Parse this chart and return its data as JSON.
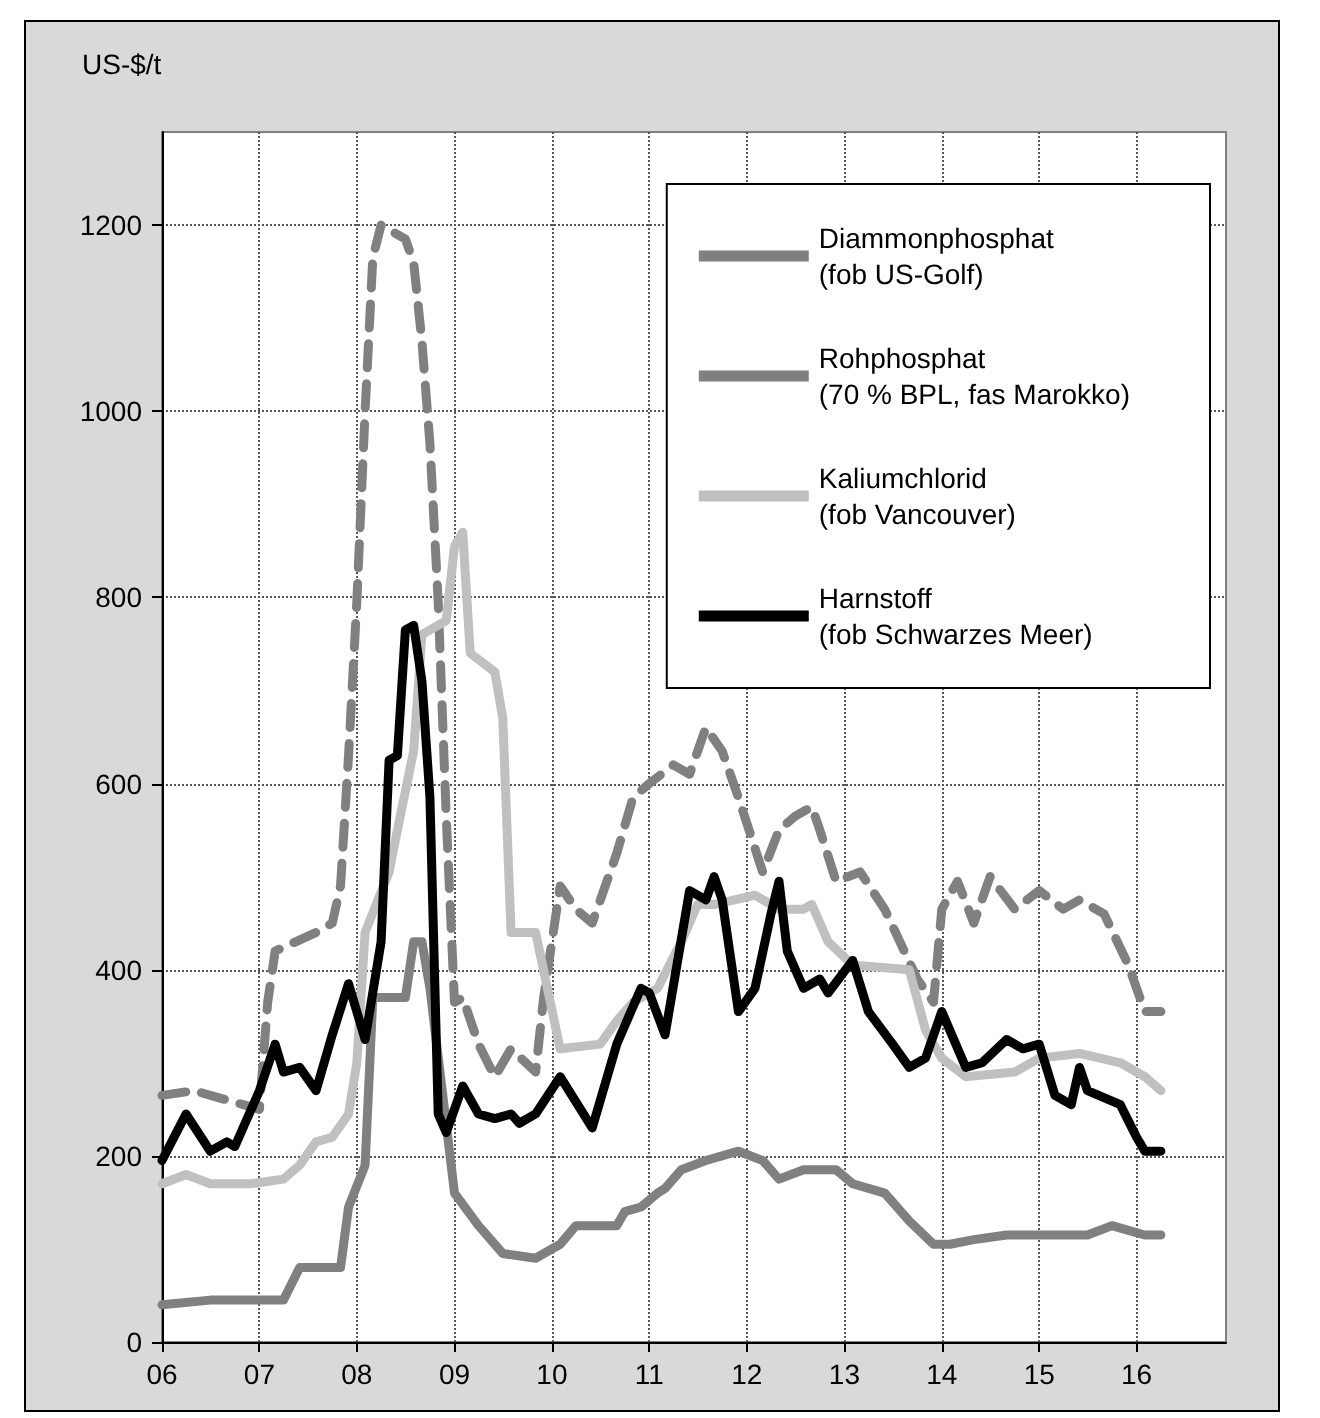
{
  "chart_data": {
    "type": "line",
    "ylabel": "US-$/t",
    "xlim": [
      "2006-01",
      "2016-12"
    ],
    "xticks": [
      {
        "value": "2006",
        "label": "06"
      },
      {
        "value": "2007",
        "label": "07"
      },
      {
        "value": "2008",
        "label": "08"
      },
      {
        "value": "2009",
        "label": "09"
      },
      {
        "value": "2010",
        "label": "10"
      },
      {
        "value": "2011",
        "label": "11"
      },
      {
        "value": "2012",
        "label": "12"
      },
      {
        "value": "2013",
        "label": "13"
      },
      {
        "value": "2014",
        "label": "14"
      },
      {
        "value": "2015",
        "label": "15"
      },
      {
        "value": "2016",
        "label": "16"
      }
    ],
    "ylim": [
      0,
      1300
    ],
    "yticks": [
      0,
      200,
      400,
      600,
      800,
      1000,
      1200
    ],
    "grid": true,
    "legend": "top right",
    "series": [
      {
        "name": "Diammonphosphat\n(fob US-Golf)",
        "color": "#808080",
        "line_style": "dashed",
        "x": [
          "2006-01",
          "2006-05",
          "2006-11",
          "2007-01",
          "2007-02",
          "2007-03",
          "2007-08",
          "2007-10",
          "2007-11",
          "2007-12",
          "2008-01",
          "2008-02",
          "2008-03",
          "2008-04",
          "2008-05",
          "2008-07",
          "2008-08",
          "2008-09",
          "2008-10",
          "2008-11",
          "2008-12",
          "2009-01",
          "2009-02",
          "2009-04",
          "2009-06",
          "2009-08",
          "2009-11",
          "2009-12",
          "2010-02",
          "2010-04",
          "2010-06",
          "2010-09",
          "2010-11",
          "2011-01",
          "2011-04",
          "2011-06",
          "2011-08",
          "2011-10",
          "2011-12",
          "2012-03",
          "2012-05",
          "2012-07",
          "2012-09",
          "2012-10",
          "2012-12",
          "2013-03",
          "2013-06",
          "2013-10",
          "2013-12",
          "2014-01",
          "2014-03",
          "2014-05",
          "2014-07",
          "2014-10",
          "2015-01",
          "2015-04",
          "2015-06",
          "2015-09",
          "2015-12",
          "2016-02",
          "2016-04"
        ],
        "values": [
          265,
          270,
          255,
          250,
          365,
          420,
          440,
          450,
          490,
          630,
          795,
          1000,
          1165,
          1200,
          1195,
          1185,
          1160,
          1075,
          965,
          795,
          565,
          365,
          370,
          320,
          285,
          315,
          290,
          370,
          490,
          465,
          450,
          525,
          585,
          600,
          620,
          610,
          660,
          635,
          585,
          505,
          550,
          565,
          575,
          550,
          495,
          505,
          465,
          390,
          365,
          465,
          495,
          450,
          500,
          465,
          485,
          465,
          475,
          460,
          405,
          355,
          355
        ]
      },
      {
        "name": "Rohphosphat\n(70 % BPL, fas Marokko)",
        "color": "#808080",
        "line_style": "solid",
        "x": [
          "2006-01",
          "2006-07",
          "2007-04",
          "2007-06",
          "2007-11",
          "2007-12",
          "2008-02",
          "2008-03",
          "2008-07",
          "2008-08",
          "2008-09",
          "2008-10",
          "2009-01",
          "2009-04",
          "2009-07",
          "2009-11",
          "2010-02",
          "2010-04",
          "2010-09",
          "2010-10",
          "2010-12",
          "2011-02",
          "2011-03",
          "2011-05",
          "2011-08",
          "2011-12",
          "2012-03",
          "2012-05",
          "2012-08",
          "2012-12",
          "2013-02",
          "2013-06",
          "2013-09",
          "2013-12",
          "2014-02",
          "2014-05",
          "2014-09",
          "2015-07",
          "2015-10",
          "2015-12",
          "2016-02",
          "2016-04"
        ],
        "values": [
          40,
          45,
          45,
          80,
          80,
          145,
          190,
          370,
          370,
          430,
          430,
          380,
          160,
          125,
          95,
          90,
          105,
          125,
          125,
          140,
          145,
          160,
          165,
          185,
          195,
          205,
          195,
          175,
          185,
          185,
          170,
          160,
          130,
          105,
          105,
          110,
          115,
          115,
          125,
          120,
          115,
          115
        ]
      },
      {
        "name": "Kaliumchlorid\n(fob Vancouver)",
        "color": "#c0c0c0",
        "line_style": "solid",
        "x": [
          "2006-01",
          "2006-04",
          "2006-07",
          "2006-12",
          "2007-04",
          "2007-06",
          "2007-08",
          "2007-10",
          "2007-12",
          "2008-01",
          "2008-02",
          "2008-05",
          "2008-06",
          "2008-08",
          "2008-09",
          "2008-12",
          "2009-01",
          "2009-02",
          "2009-03",
          "2009-06",
          "2009-07",
          "2009-08",
          "2009-11",
          "2010-02",
          "2010-07",
          "2010-09",
          "2010-11",
          "2011-02",
          "2011-05",
          "2011-07",
          "2011-09",
          "2012-02",
          "2012-05",
          "2012-08",
          "2012-09",
          "2012-11",
          "2013-02",
          "2013-09",
          "2013-11",
          "2014-01",
          "2014-04",
          "2014-10",
          "2015-01",
          "2015-06",
          "2015-11",
          "2016-02",
          "2016-04"
        ],
        "values": [
          170,
          180,
          170,
          170,
          175,
          190,
          215,
          220,
          245,
          300,
          440,
          505,
          550,
          635,
          760,
          775,
          855,
          870,
          740,
          720,
          670,
          440,
          440,
          315,
          320,
          345,
          365,
          380,
          430,
          470,
          470,
          480,
          465,
          465,
          470,
          430,
          405,
          400,
          335,
          305,
          285,
          290,
          305,
          310,
          300,
          285,
          270
        ]
      },
      {
        "name": "Harnstoff\n(fob Schwarzes Meer)",
        "color": "#000000",
        "line_style": "solid",
        "x": [
          "2006-01",
          "2006-04",
          "2006-07",
          "2006-09",
          "2006-10",
          "2007-01",
          "2007-03",
          "2007-04",
          "2007-06",
          "2007-08",
          "2007-10",
          "2007-12",
          "2008-02",
          "2008-04",
          "2008-05",
          "2008-06",
          "2008-07",
          "2008-08",
          "2008-09",
          "2008-10",
          "2008-11",
          "2008-12",
          "2009-02",
          "2009-04",
          "2009-06",
          "2009-08",
          "2009-09",
          "2009-11",
          "2010-02",
          "2010-06",
          "2010-09",
          "2010-12",
          "2011-01",
          "2011-03",
          "2011-06",
          "2011-08",
          "2011-09",
          "2011-10",
          "2011-12",
          "2012-02",
          "2012-04",
          "2012-05",
          "2012-06",
          "2012-08",
          "2012-10",
          "2012-11",
          "2013-02",
          "2013-04",
          "2013-07",
          "2013-09",
          "2013-11",
          "2014-01",
          "2014-04",
          "2014-06",
          "2014-09",
          "2014-11",
          "2015-01",
          "2015-03",
          "2015-05",
          "2015-06",
          "2015-07",
          "2015-11",
          "2016-01",
          "2016-02",
          "2016-04"
        ],
        "values": [
          195,
          245,
          205,
          215,
          210,
          270,
          320,
          290,
          295,
          270,
          330,
          385,
          325,
          430,
          625,
          630,
          765,
          770,
          710,
          585,
          245,
          225,
          275,
          245,
          240,
          245,
          235,
          245,
          285,
          230,
          320,
          380,
          375,
          330,
          485,
          475,
          500,
          475,
          355,
          380,
          460,
          495,
          420,
          380,
          390,
          375,
          410,
          355,
          320,
          295,
          305,
          355,
          295,
          300,
          325,
          315,
          320,
          265,
          255,
          295,
          270,
          255,
          220,
          205,
          205
        ]
      }
    ]
  }
}
